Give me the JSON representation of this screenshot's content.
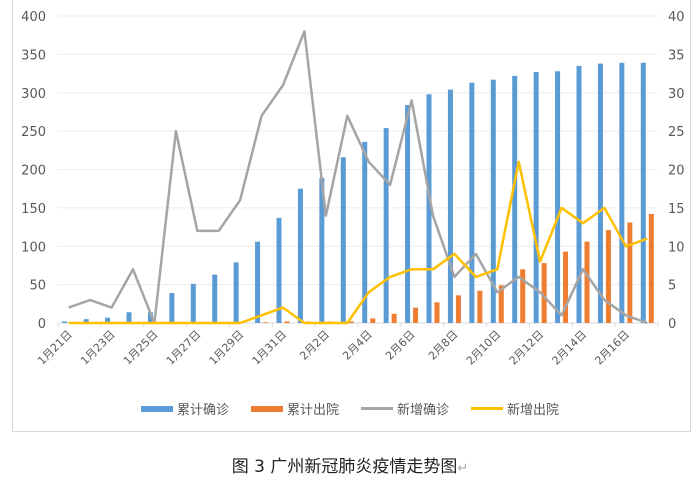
{
  "caption": {
    "text": "图 3  广州新冠肺炎疫情走势图",
    "return_mark": "↵"
  },
  "legend": [
    {
      "label": "累计确诊",
      "color": "#5b9bd5",
      "kind": "bar"
    },
    {
      "label": "累计出院",
      "color": "#ed7d31",
      "kind": "bar"
    },
    {
      "label": "新增确诊",
      "color": "#a5a5a5",
      "kind": "line"
    },
    {
      "label": "新增出院",
      "color": "#ffc000",
      "kind": "line"
    }
  ],
  "chart_data": {
    "type": "bar+line",
    "title": "图 3  广州新冠肺炎疫情走势图",
    "categories": [
      "1月21日",
      "1月22日",
      "1月23日",
      "1月24日",
      "1月25日",
      "1月26日",
      "1月27日",
      "1月28日",
      "1月29日",
      "1月30日",
      "1月31日",
      "2月1日",
      "2月2日",
      "2月3日",
      "2月4日",
      "2月5日",
      "2月6日",
      "2月7日",
      "2月8日",
      "2月9日",
      "2月10日",
      "2月11日",
      "2月12日",
      "2月13日",
      "2月14日",
      "2月15日",
      "2月16日",
      "2月17日"
    ],
    "x_tick_labels_shown": [
      "1月21日",
      "1月23日",
      "1月25日",
      "1月27日",
      "1月29日",
      "1月31日",
      "2月2日",
      "2月4日",
      "2月6日",
      "2月8日",
      "2月10日",
      "2月12日",
      "2月14日",
      "2月16日"
    ],
    "series": [
      {
        "name": "累计确诊",
        "type": "bar",
        "axis": "left",
        "color": "#5b9bd5",
        "values": [
          2,
          5,
          7,
          14,
          14,
          39,
          51,
          63,
          79,
          106,
          137,
          175,
          189,
          216,
          236,
          254,
          284,
          298,
          304,
          313,
          317,
          322,
          327,
          328,
          335,
          338,
          339,
          339
        ]
      },
      {
        "name": "累计出院",
        "type": "bar",
        "axis": "left",
        "color": "#ed7d31",
        "values": [
          0,
          0,
          0,
          0,
          0,
          0,
          0,
          0,
          0,
          1,
          2,
          2,
          2,
          2,
          6,
          12,
          20,
          27,
          36,
          42,
          49,
          70,
          78,
          93,
          106,
          121,
          131,
          142
        ]
      },
      {
        "name": "新增确诊",
        "type": "line",
        "axis": "right",
        "color": "#a5a5a5",
        "values": [
          2,
          3,
          2,
          7,
          0,
          25,
          12,
          12,
          16,
          27,
          31,
          38,
          14,
          27,
          21,
          18,
          29,
          14,
          6,
          9,
          4,
          6,
          4,
          1,
          7,
          3,
          1,
          0
        ]
      },
      {
        "name": "新增出院",
        "type": "line",
        "axis": "right",
        "color": "#ffc000",
        "values": [
          0,
          0,
          0,
          0,
          0,
          0,
          0,
          0,
          0,
          1,
          2,
          0,
          0,
          0,
          4,
          6,
          7,
          7,
          9,
          6,
          7,
          21,
          8,
          15,
          13,
          15,
          10,
          11
        ]
      }
    ],
    "left_axis": {
      "min": 0,
      "max": 400,
      "step": 50,
      "ticks": [
        0,
        50,
        100,
        150,
        200,
        250,
        300,
        350,
        400
      ]
    },
    "right_axis": {
      "min": 0,
      "max": 40,
      "step": 5,
      "ticks": [
        0,
        5,
        10,
        15,
        20,
        25,
        30,
        35,
        40
      ]
    },
    "grid": true,
    "legend_position": "bottom"
  }
}
